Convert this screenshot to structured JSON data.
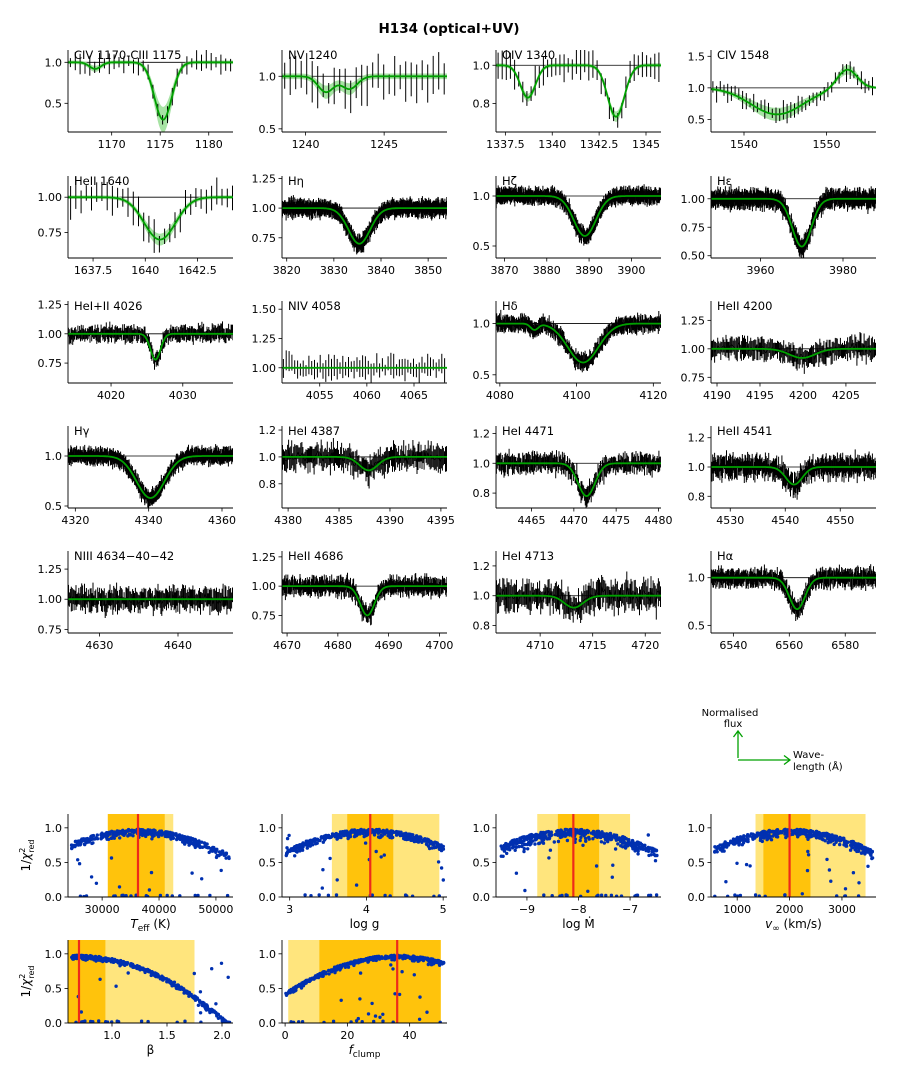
{
  "title": "H134 (optical+UV)",
  "colors": {
    "data": "#000000",
    "model": "#00a000",
    "model_band": "#9de09a",
    "scatter": "#0030b0",
    "best_fit": "#ee2a1a",
    "band_inner": "#ffbf00",
    "band_outer": "#ffe066",
    "arrow": "#00a000"
  },
  "legend": {
    "y_label_line1": "Normalised",
    "y_label_line2": "flux",
    "x_label_line1": "Wave-",
    "x_label_line2": "length (Å)"
  },
  "chart_data": [
    {
      "type": "line",
      "name": "spec-civ-ciii",
      "label": "CIV 1170-CIII 1175",
      "xlim": [
        1165.5,
        1182.5
      ],
      "ylim": [
        0.15,
        1.15
      ],
      "xticks": [
        1170,
        1175,
        1180
      ],
      "yticks": [
        0.5,
        1.0
      ],
      "ytick_labels": [
        "0.5",
        "1.0"
      ],
      "lines": [
        {
          "c": 1175.3,
          "d": 0.7,
          "w": 0.9
        },
        {
          "c": 1168.3,
          "d": 0.08,
          "w": 0.6
        }
      ],
      "noise": 0.12,
      "band": 0.12,
      "step": 0.5
    },
    {
      "type": "line",
      "name": "spec-nv",
      "label": "NV 1240",
      "xlim": [
        1238.5,
        1249
      ],
      "ylim": [
        0.47,
        1.25
      ],
      "xticks": [
        1240,
        1245
      ],
      "yticks": [
        0.5,
        1.0
      ],
      "ytick_labels": [
        "0.5",
        "1.0"
      ],
      "lines": [
        {
          "c": 1241.3,
          "d": 0.15,
          "w": 0.5
        },
        {
          "c": 1242.8,
          "d": 0.12,
          "w": 0.5
        }
      ],
      "noise": 0.2,
      "band": 0.15,
      "step": 0.35
    },
    {
      "type": "line",
      "name": "spec-oiv",
      "label": "OIV 1340",
      "xlim": [
        1337,
        1345.8
      ],
      "ylim": [
        0.65,
        1.08
      ],
      "xticks": [
        1337.5,
        1340.0,
        1342.5,
        1345.0
      ],
      "yticks": [
        0.8,
        1.0
      ],
      "ytick_labels": [
        "0.8",
        "1.0"
      ],
      "lines": [
        {
          "c": 1338.7,
          "d": 0.17,
          "w": 0.4
        },
        {
          "c": 1343.4,
          "d": 0.27,
          "w": 0.45
        }
      ],
      "noise": 0.08,
      "band": 0.04,
      "step": 0.22
    },
    {
      "type": "line",
      "name": "spec-civ-1548",
      "label": "CIV 1548",
      "xlim": [
        1536,
        1556
      ],
      "ylim": [
        0.3,
        1.6
      ],
      "xticks": [
        1540,
        1550
      ],
      "yticks": [
        0.5,
        1.0,
        1.5
      ],
      "ytick_labels": [
        "0.5",
        "1.0",
        "1.5"
      ],
      "lines": [
        {
          "c": 1544,
          "d": 0.42,
          "w": 3.2
        }
      ],
      "emission": {
        "c": 1552.5,
        "h": 0.3,
        "w": 1.2
      },
      "noise": 0.15,
      "band": 0.12,
      "step": 0.45
    },
    {
      "type": "line",
      "name": "spec-heii-1640",
      "label": "HeII 1640",
      "xlim": [
        1636.3,
        1644.2
      ],
      "ylim": [
        0.57,
        1.15
      ],
      "xticks": [
        1637.5,
        1640.0,
        1642.5
      ],
      "yticks": [
        0.75,
        1.0
      ],
      "ytick_labels": [
        "0.75",
        "1.00"
      ],
      "lines": [
        {
          "c": 1640.7,
          "d": 0.3,
          "w": 0.75
        }
      ],
      "noise": 0.12,
      "band": 0.06,
      "step": 0.25
    },
    {
      "type": "line",
      "name": "spec-h-eta",
      "label": "Hη",
      "xlim": [
        3819,
        3854
      ],
      "ylim": [
        0.58,
        1.27
      ],
      "xticks": [
        3820,
        3830,
        3840,
        3850
      ],
      "yticks": [
        0.75,
        1.0,
        1.25
      ],
      "ytick_labels": [
        "0.75",
        "1.00",
        "1.25"
      ],
      "lines": [
        {
          "c": 3835.4,
          "d": 0.3,
          "w": 2.3
        }
      ],
      "noise": 0.07,
      "band": 0.04,
      "step": 0.07
    },
    {
      "type": "line",
      "name": "spec-h-zeta",
      "label": "Hζ",
      "xlim": [
        3868,
        3907
      ],
      "ylim": [
        0.38,
        1.2
      ],
      "xticks": [
        3870,
        3880,
        3890,
        3900
      ],
      "yticks": [
        0.5,
        1.0
      ],
      "ytick_labels": [
        "0.5",
        "1.0"
      ],
      "lines": [
        {
          "c": 3889,
          "d": 0.4,
          "w": 2.6
        }
      ],
      "noise": 0.08,
      "band": 0.04,
      "step": 0.08
    },
    {
      "type": "line",
      "name": "spec-h-epsilon",
      "label": "Hε",
      "xlim": [
        3948,
        3988
      ],
      "ylim": [
        0.48,
        1.2
      ],
      "xticks": [
        3960,
        3980
      ],
      "yticks": [
        0.5,
        0.75,
        1.0
      ],
      "ytick_labels": [
        "0.50",
        "0.75",
        "1.00"
      ],
      "lines": [
        {
          "c": 3970,
          "d": 0.42,
          "w": 2.3
        }
      ],
      "noise": 0.08,
      "band": 0.04,
      "step": 0.08
    },
    {
      "type": "line",
      "name": "spec-hei-heii-4026",
      "label": "HeI+II 4026",
      "xlim": [
        4014,
        4037
      ],
      "ylim": [
        0.58,
        1.28
      ],
      "xticks": [
        4020,
        4030
      ],
      "yticks": [
        0.75,
        1.0,
        1.25
      ],
      "ytick_labels": [
        "0.75",
        "1.00",
        "1.25"
      ],
      "lines": [
        {
          "c": 4026.2,
          "d": 0.22,
          "w": 0.7
        }
      ],
      "noise": 0.07,
      "band": 0.03,
      "step": 0.12
    },
    {
      "type": "line",
      "name": "spec-niv-4058",
      "label": "NIV 4058",
      "xlim": [
        4051,
        4068.5
      ],
      "ylim": [
        0.87,
        1.57
      ],
      "xticks": [
        4055,
        4060,
        4065
      ],
      "yticks": [
        1.0,
        1.25,
        1.5
      ],
      "ytick_labels": [
        "1.00",
        "1.25",
        "1.50"
      ],
      "lines": [],
      "noise": 0.1,
      "band": 0.005,
      "step": 0.3
    },
    {
      "type": "line",
      "name": "spec-h-delta",
      "label": "Hδ",
      "xlim": [
        4079,
        4122
      ],
      "ylim": [
        0.42,
        1.22
      ],
      "xticks": [
        4080,
        4100,
        4120
      ],
      "yticks": [
        0.5,
        1.0
      ],
      "ytick_labels": [
        "0.5",
        "1.0"
      ],
      "lines": [
        {
          "c": 4101.7,
          "d": 0.38,
          "w": 4.0
        },
        {
          "c": 4089,
          "d": 0.06,
          "w": 1.0
        }
      ],
      "noise": 0.08,
      "band": 0.03,
      "step": 0.12
    },
    {
      "type": "line",
      "name": "spec-heii-4200",
      "label": "HeII 4200",
      "xlim": [
        4189.3,
        4208.5
      ],
      "ylim": [
        0.7,
        1.42
      ],
      "xticks": [
        4190,
        4195,
        4200,
        4205
      ],
      "yticks": [
        0.75,
        1.0,
        1.25
      ],
      "ytick_labels": [
        "0.75",
        "1.00",
        "1.25"
      ],
      "lines": [
        {
          "c": 4199.9,
          "d": 0.08,
          "w": 1.5
        }
      ],
      "noise": 0.1,
      "band": 0.03,
      "step": 0.12
    },
    {
      "type": "line",
      "name": "spec-h-gamma",
      "label": "Hγ",
      "xlim": [
        4318,
        4363
      ],
      "ylim": [
        0.48,
        1.3
      ],
      "xticks": [
        4320,
        4340,
        4360
      ],
      "yticks": [
        0.5,
        1.0
      ],
      "ytick_labels": [
        "0.5",
        "1.0"
      ],
      "lines": [
        {
          "c": 4340.5,
          "d": 0.42,
          "w": 3.8
        }
      ],
      "noise": 0.08,
      "band": 0.03,
      "step": 0.1
    },
    {
      "type": "line",
      "name": "spec-hei-4387",
      "label": "HeI 4387",
      "xlim": [
        4379.4,
        4395.6
      ],
      "ylim": [
        0.62,
        1.23
      ],
      "xticks": [
        4380,
        4385,
        4390,
        4395
      ],
      "yticks": [
        0.8,
        1.0,
        1.2
      ],
      "ytick_labels": [
        "0.8",
        "1.0",
        "1.2"
      ],
      "lines": [
        {
          "c": 4387.9,
          "d": 0.1,
          "w": 0.9
        }
      ],
      "noise": 0.1,
      "band": 0.06,
      "step": 0.1
    },
    {
      "type": "line",
      "name": "spec-hei-4471",
      "label": "HeI 4471",
      "xlim": [
        4460.8,
        4480.3
      ],
      "ylim": [
        0.7,
        1.25
      ],
      "xticks": [
        4465,
        4470,
        4475,
        4480
      ],
      "yticks": [
        0.8,
        1.0,
        1.2
      ],
      "ytick_labels": [
        "0.8",
        "1.0",
        "1.2"
      ],
      "lines": [
        {
          "c": 4471.5,
          "d": 0.22,
          "w": 1.0
        }
      ],
      "noise": 0.07,
      "band": 0.03,
      "step": 0.1
    },
    {
      "type": "line",
      "name": "spec-heii-4541",
      "label": "HeII 4541",
      "xlim": [
        4526.5,
        4556.5
      ],
      "ylim": [
        0.72,
        1.28
      ],
      "xticks": [
        4530,
        4540,
        4550
      ],
      "yticks": [
        0.8,
        1.0,
        1.2
      ],
      "ytick_labels": [
        "0.8",
        "1.0",
        "1.2"
      ],
      "lines": [
        {
          "c": 4541.6,
          "d": 0.12,
          "w": 1.5
        }
      ],
      "noise": 0.08,
      "band": 0.03,
      "step": 0.12
    },
    {
      "type": "line",
      "name": "spec-niii-4634",
      "label": "NIII 4634−40−42",
      "xlim": [
        4626,
        4647
      ],
      "ylim": [
        0.72,
        1.4
      ],
      "xticks": [
        4630,
        4640
      ],
      "yticks": [
        0.75,
        1.0,
        1.25
      ],
      "ytick_labels": [
        "0.75",
        "1.00",
        "1.25"
      ],
      "lines": [],
      "noise": 0.1,
      "band": 0.01,
      "step": 0.12
    },
    {
      "type": "line",
      "name": "spec-heii-4686",
      "label": "HeII 4686",
      "xlim": [
        4669,
        4701.5
      ],
      "ylim": [
        0.6,
        1.3
      ],
      "xticks": [
        4670,
        4680,
        4690,
        4700
      ],
      "yticks": [
        0.75,
        1.0,
        1.25
      ],
      "ytick_labels": [
        "0.75",
        "1.00",
        "1.25"
      ],
      "lines": [
        {
          "c": 4685.8,
          "d": 0.25,
          "w": 1.4
        }
      ],
      "noise": 0.08,
      "band": 0.03,
      "step": 0.12
    },
    {
      "type": "line",
      "name": "spec-hei-4713",
      "label": "HeI 4713",
      "xlim": [
        4705.8,
        4721.5
      ],
      "ylim": [
        0.75,
        1.3
      ],
      "xticks": [
        4710,
        4715,
        4720
      ],
      "yticks": [
        0.8,
        1.0,
        1.2
      ],
      "ytick_labels": [
        "0.8",
        "1.0",
        "1.2"
      ],
      "lines": [
        {
          "c": 4713.2,
          "d": 0.08,
          "w": 0.9
        }
      ],
      "noise": 0.1,
      "band": 0.03,
      "step": 0.1
    },
    {
      "type": "line",
      "name": "spec-h-alpha",
      "label": "Hα",
      "xlim": [
        6532,
        6591
      ],
      "ylim": [
        0.42,
        1.28
      ],
      "xticks": [
        6540,
        6560,
        6580
      ],
      "yticks": [
        0.5,
        1.0
      ],
      "ytick_labels": [
        "0.5",
        "1.0"
      ],
      "lines": [
        {
          "c": 6562.8,
          "d": 0.33,
          "w": 2.8
        }
      ],
      "noise": 0.1,
      "band": 0.03,
      "step": 0.2
    },
    {
      "type": "scatter",
      "name": "fit-teff",
      "xlabel": "T_eff (K)",
      "xlim": [
        24000,
        53000
      ],
      "ylim": [
        0,
        1.2
      ],
      "xticks": [
        30000,
        40000,
        50000
      ],
      "xtick_labels": [
        "30000",
        "40000",
        "50000"
      ],
      "yticks": [
        0,
        0.5,
        1.0
      ],
      "ytick_labels": [
        "0.0",
        "0.5",
        "1.0"
      ],
      "best": 36300,
      "inner": [
        31000,
        41000
      ],
      "outer": [
        31000,
        42500
      ],
      "spread": 0.1
    },
    {
      "type": "scatter",
      "name": "fit-logg",
      "xlabel": "log g",
      "xlim": [
        2.9,
        5.05
      ],
      "ylim": [
        0,
        1.2
      ],
      "xticks": [
        3,
        4,
        5
      ],
      "xtick_labels": [
        "3",
        "4",
        "5"
      ],
      "yticks": [
        0,
        0.5,
        1.0
      ],
      "ytick_labels": [
        "0.0",
        "0.5",
        "1.0"
      ],
      "best": 4.05,
      "inner": [
        3.75,
        4.35
      ],
      "outer": [
        3.55,
        4.95
      ],
      "spread": 0.1
    },
    {
      "type": "scatter",
      "name": "fit-mdot",
      "xlabel": "log Ṁ",
      "xlim": [
        -9.6,
        -6.4
      ],
      "ylim": [
        0,
        1.2
      ],
      "xticks": [
        -9,
        -8,
        -7
      ],
      "xtick_labels": [
        "−9",
        "−8",
        "−7"
      ],
      "yticks": [
        0,
        0.5,
        1.0
      ],
      "ytick_labels": [
        "0.0",
        "0.5",
        "1.0"
      ],
      "best": -8.1,
      "inner": [
        -8.4,
        -7.6
      ],
      "outer": [
        -8.8,
        -7.0
      ],
      "spread": 0.15
    },
    {
      "type": "scatter",
      "name": "fit-vinf",
      "xlabel": "v_∞ (km/s)",
      "xlim": [
        500,
        3650
      ],
      "ylim": [
        0,
        1.2
      ],
      "xticks": [
        1000,
        2000,
        3000
      ],
      "xtick_labels": [
        "1000",
        "2000",
        "3000"
      ],
      "yticks": [
        0,
        0.5,
        1.0
      ],
      "ytick_labels": [
        "0.0",
        "0.5",
        "1.0"
      ],
      "best": 2000,
      "inner": [
        1500,
        2400
      ],
      "outer": [
        1350,
        3450
      ],
      "spread": 0.12
    },
    {
      "type": "scatter",
      "name": "fit-beta",
      "xlabel": "β",
      "xlim": [
        0.6,
        2.1
      ],
      "ylim": [
        0,
        1.2
      ],
      "xticks": [
        1.0,
        1.5,
        2.0
      ],
      "xtick_labels": [
        "1.0",
        "1.5",
        "2.0"
      ],
      "yticks": [
        0,
        0.5,
        1.0
      ],
      "ytick_labels": [
        "0.0",
        "0.5",
        "1.0"
      ],
      "best": 0.7,
      "inner": [
        0.6,
        0.94
      ],
      "outer": [
        0.6,
        1.75
      ],
      "spread": 0.06
    },
    {
      "type": "scatter",
      "name": "fit-fclump",
      "xlabel": "f_clump",
      "xlim": [
        -1,
        52
      ],
      "ylim": [
        0,
        1.2
      ],
      "xticks": [
        0,
        20,
        40
      ],
      "xtick_labels": [
        "0",
        "20",
        "40"
      ],
      "yticks": [
        0,
        0.5,
        1.0
      ],
      "ytick_labels": [
        "0.0",
        "0.5",
        "1.0"
      ],
      "best": 36,
      "inner": [
        11,
        50
      ],
      "outer": [
        1,
        50
      ],
      "spread": 0.06
    }
  ]
}
